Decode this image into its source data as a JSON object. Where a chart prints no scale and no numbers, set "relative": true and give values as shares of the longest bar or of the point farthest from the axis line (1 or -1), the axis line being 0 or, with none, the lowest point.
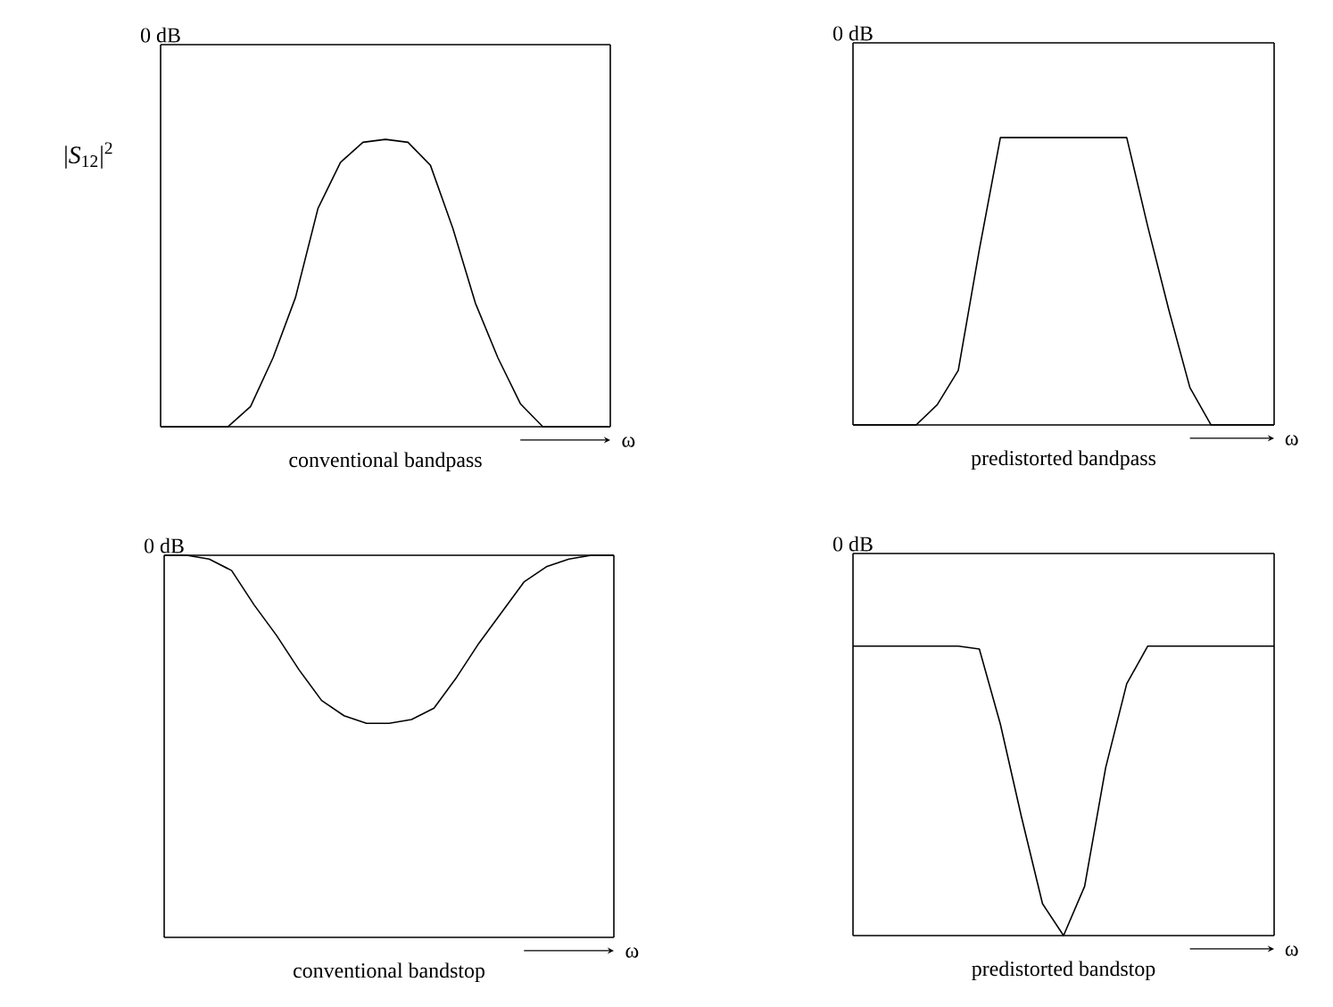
{
  "chart_data": [
    {
      "type": "line",
      "color": "#000000",
      "relative": true,
      "xlabel": "conventional bandpass",
      "ylabel": "|*S*$_{12}$|$^{2}$",
      "annotations": [
        "ω"
      ],
      "categories": [
        null,
        null,
        null,
        null,
        null,
        null,
        null,
        null,
        null,
        null,
        null,
        null,
        null,
        null,
        null,
        null,
        null,
        null,
        null,
        null,
        null
      ],
      "values": [
        0,
        0,
        0,
        0,
        0.07,
        0.24,
        0.45,
        0.76,
        0.92,
        0.99,
        1,
        0.99,
        0.91,
        0.69,
        0.43,
        0.24,
        0.08,
        0,
        0,
        0,
        0
      ],
      "ref_lines": [
        {
          "axis": "y",
          "value": 1.33,
          "label": "0 dB"
        }
      ]
    },
    {
      "type": "line",
      "color": "#000000",
      "relative": true,
      "xlabel": "predistorted bandpass",
      "annotations": [
        "ω"
      ],
      "categories": [
        null,
        null,
        null,
        null,
        null,
        null,
        null,
        null,
        null,
        null,
        null,
        null,
        null,
        null,
        null,
        null,
        null,
        null,
        null,
        null,
        null
      ],
      "values": [
        0,
        0,
        0,
        0,
        0.07,
        0.19,
        0.61,
        1,
        1,
        1,
        1,
        1,
        1,
        1,
        0.69,
        0.4,
        0.13,
        0,
        0,
        0,
        0
      ],
      "ref_lines": [
        {
          "axis": "y",
          "value": 1.33,
          "label": "0 dB"
        }
      ]
    },
    {
      "type": "line",
      "color": "#000000",
      "relative": true,
      "xlabel": "conventional bandstop",
      "annotations": [
        "ω"
      ],
      "categories": [
        null,
        null,
        null,
        null,
        null,
        null,
        null,
        null,
        null,
        null,
        null,
        null,
        null,
        null,
        null,
        null,
        null,
        null,
        null,
        null,
        null
      ],
      "values": [
        1,
        1,
        0.99,
        0.96,
        0.87,
        0.79,
        0.7,
        0.62,
        0.58,
        0.56,
        0.56,
        0.57,
        0.6,
        0.68,
        0.77,
        0.85,
        0.93,
        0.97,
        0.99,
        1,
        1
      ],
      "ref_lines": [
        {
          "axis": "y",
          "value": 1,
          "label": "0 dB"
        }
      ]
    },
    {
      "type": "line",
      "color": "#000000",
      "relative": true,
      "xlabel": "predistorted bandstop",
      "annotations": [
        "ω"
      ],
      "categories": [
        null,
        null,
        null,
        null,
        null,
        null,
        null,
        null,
        null,
        null,
        null,
        null,
        null,
        null,
        null,
        null,
        null,
        null,
        null,
        null,
        null
      ],
      "values": [
        1,
        1,
        1,
        1,
        1,
        1,
        0.99,
        0.73,
        0.41,
        0.11,
        0,
        0.17,
        0.58,
        0.87,
        1,
        1,
        1,
        1,
        1,
        1,
        1
      ],
      "ref_lines": [
        {
          "axis": "y",
          "value": 1.32,
          "label": "0 dB"
        }
      ]
    }
  ]
}
